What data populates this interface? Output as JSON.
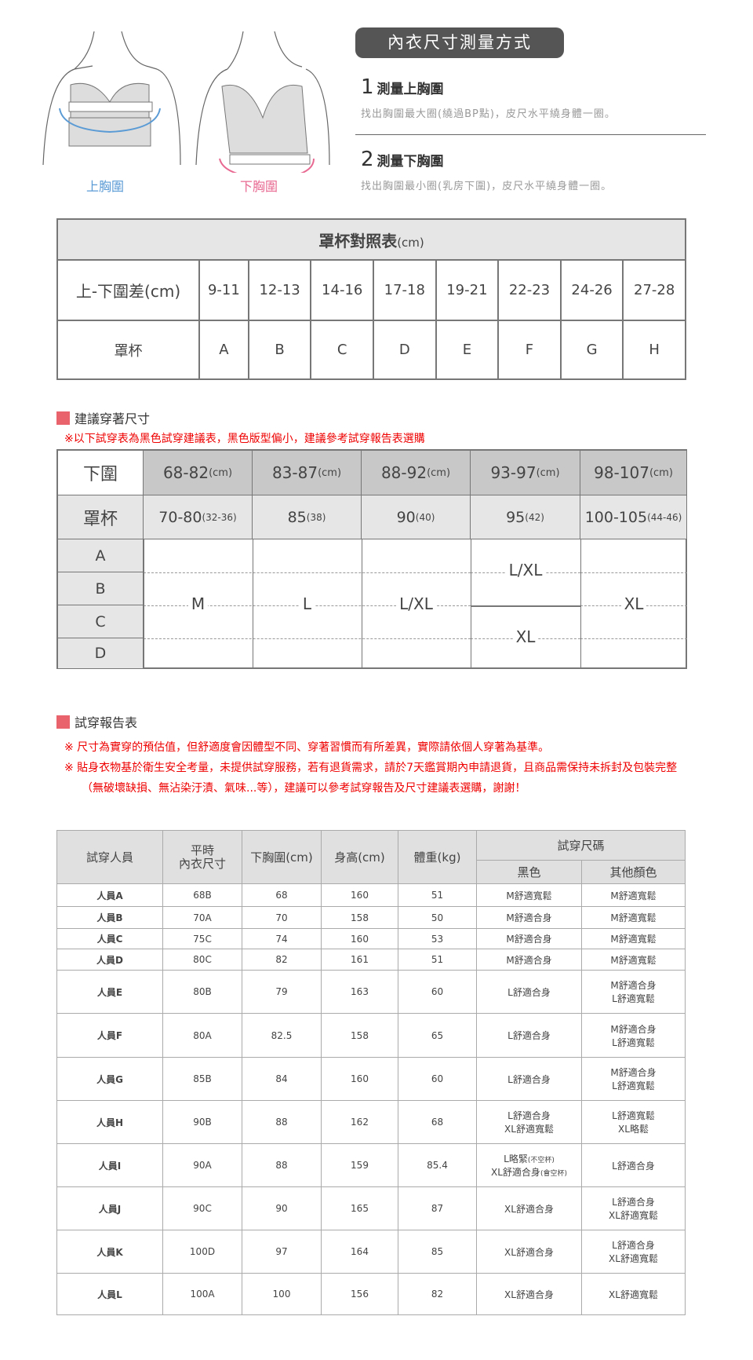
{
  "measure": {
    "title": "內衣尺寸測量方式",
    "label_upper": "上胸圍",
    "label_lower": "下胸圍",
    "steps": [
      {
        "num": "1",
        "title": "測量上胸圍",
        "desc": "找出胸圍最大圈(繞過BP點)，皮尺水平繞身體一圈。"
      },
      {
        "num": "2",
        "title": "測量下胸圍",
        "desc": "找出胸圍最小圈(乳房下圍)，皮尺水平繞身體一圈。"
      }
    ],
    "colors": {
      "upper": "#5b9bd5",
      "lower": "#e86a92"
    }
  },
  "cup_table": {
    "title": "罩杯對照表",
    "unit": "(cm)",
    "row1_label": "上-下圍差(cm)",
    "row2_label": "罩杯",
    "diffs": [
      "9-11",
      "12-13",
      "14-16",
      "17-18",
      "19-21",
      "22-23",
      "24-26",
      "27-28"
    ],
    "cups": [
      "A",
      "B",
      "C",
      "D",
      "E",
      "F",
      "G",
      "H"
    ]
  },
  "size_section": {
    "title": "建議穿著尺寸",
    "note": "※以下試穿表為黑色試穿建議表，黑色版型偏小，建議參考試穿報告表選購",
    "under_label": "下圍",
    "cup_label": "罩杯",
    "under": [
      {
        "v": "68-82",
        "u": "(cm)"
      },
      {
        "v": "83-87",
        "u": "(cm)"
      },
      {
        "v": "88-92",
        "u": "(cm)"
      },
      {
        "v": "93-97",
        "u": "(cm)"
      },
      {
        "v": "98-107",
        "u": "(cm)"
      }
    ],
    "band": [
      {
        "v": "70-80",
        "u": "(32-36)"
      },
      {
        "v": "85",
        "u": "(38)"
      },
      {
        "v": "90",
        "u": "(40)"
      },
      {
        "v": "95",
        "u": "(42)"
      },
      {
        "v": "100-105",
        "u": "(44-46)"
      }
    ],
    "cups": [
      "A",
      "B",
      "C",
      "D"
    ],
    "sizes": [
      "M",
      "L",
      "L/XL",
      "L/XL",
      "XL",
      "XL"
    ]
  },
  "report": {
    "title": "試穿報告表",
    "notes": [
      "※ 尺寸為實穿的預估值，但舒適度會因體型不同、穿著習慣而有所差異，實際請依個人穿著為基準。",
      "※ 貼身衣物基於衛生安全考量，未提供試穿服務，若有退貨需求，請於7天鑑賞期內申請退貨，且商品需保持未拆封及包裝完整（無破壞缺損、無沾染汙漬、氣味...等），建議可以參考試穿報告及尺寸建議表選購，謝謝！"
    ],
    "headers": {
      "person": "試穿人員",
      "usual_1": "平時",
      "usual_2": "內衣尺寸",
      "under": "下胸圍(cm)",
      "height": "身高(cm)",
      "weight": "體重(kg)",
      "trial": "試穿尺碼",
      "black": "黑色",
      "other": "其他顏色"
    },
    "rows": [
      [
        "人員A",
        "68B",
        "68",
        "160",
        "51",
        "M舒適寬鬆",
        "M舒適寬鬆"
      ],
      [
        "人員B",
        "70A",
        "70",
        "158",
        "50",
        "M舒適合身",
        "M舒適寬鬆"
      ],
      [
        "人員C",
        "75C",
        "74",
        "160",
        "53",
        "M舒適合身",
        "M舒適寬鬆"
      ],
      [
        "人員D",
        "80C",
        "82",
        "161",
        "51",
        "M舒適合身",
        "M舒適寬鬆"
      ],
      [
        "人員E",
        "80B",
        "79",
        "163",
        "60",
        "L舒適合身",
        "M舒適合身\nL舒適寬鬆"
      ],
      [
        "人員F",
        "80A",
        "82.5",
        "158",
        "65",
        "L舒適合身",
        "M舒適合身\nL舒適寬鬆"
      ],
      [
        "人員G",
        "85B",
        "84",
        "160",
        "60",
        "L舒適合身",
        "M舒適合身\nL舒適寬鬆"
      ],
      [
        "人員H",
        "90B",
        "88",
        "162",
        "68",
        "L舒適合身\nXL舒適寬鬆",
        "L舒適寬鬆\nXL略鬆"
      ],
      [
        "人員I",
        "90A",
        "88",
        "159",
        "85.4",
        "L略緊|(不空杯)\nXL舒適合身|(會空杯)",
        "L舒適合身"
      ],
      [
        "人員J",
        "90C",
        "90",
        "165",
        "87",
        "XL舒適合身",
        "L舒適合身\nXL舒適寬鬆"
      ],
      [
        "人員K",
        "100D",
        "97",
        "164",
        "85",
        "XL舒適合身",
        "L舒適合身\nXL舒適寬鬆"
      ],
      [
        "人員L",
        "100A",
        "100",
        "156",
        "82",
        "XL舒適合身",
        "XL舒適寬鬆"
      ]
    ]
  }
}
